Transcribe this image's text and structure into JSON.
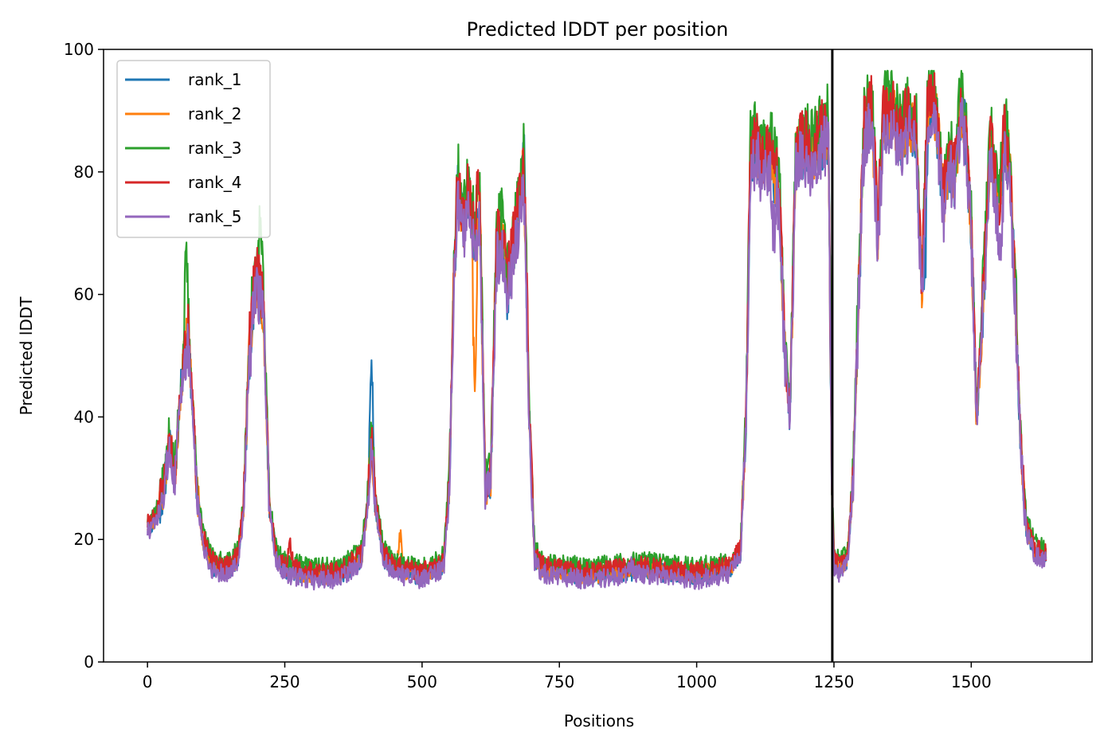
{
  "chart_data": {
    "type": "line",
    "title": "Predicted lDDT per position",
    "xlabel": "Positions",
    "ylabel": "Predicted lDDT",
    "xlim": [
      -80,
      1720
    ],
    "ylim": [
      0,
      100
    ],
    "xticks": [
      0,
      250,
      500,
      750,
      1000,
      1250,
      1500
    ],
    "yticks": [
      0,
      20,
      40,
      60,
      80,
      100
    ],
    "grid": false,
    "legend_position": "top-left",
    "vertical_line_x": 1247,
    "colors": [
      "#1f77b4",
      "#ff7f0e",
      "#2ca02c",
      "#d62728",
      "#9467bd"
    ],
    "x_range": [
      0,
      1636
    ],
    "anchors": [
      [
        0,
        22
      ],
      [
        15,
        23
      ],
      [
        30,
        28
      ],
      [
        40,
        36
      ],
      [
        50,
        30
      ],
      [
        58,
        42
      ],
      [
        65,
        48
      ],
      [
        72,
        54
      ],
      [
        80,
        45
      ],
      [
        90,
        28
      ],
      [
        100,
        20
      ],
      [
        115,
        16
      ],
      [
        130,
        15
      ],
      [
        150,
        15
      ],
      [
        165,
        17
      ],
      [
        175,
        25
      ],
      [
        185,
        50
      ],
      [
        195,
        60
      ],
      [
        205,
        62
      ],
      [
        212,
        55
      ],
      [
        222,
        25
      ],
      [
        235,
        17
      ],
      [
        250,
        15
      ],
      [
        300,
        14
      ],
      [
        350,
        14
      ],
      [
        390,
        17
      ],
      [
        400,
        25
      ],
      [
        408,
        36
      ],
      [
        416,
        25
      ],
      [
        430,
        17
      ],
      [
        450,
        15
      ],
      [
        500,
        14
      ],
      [
        540,
        16
      ],
      [
        550,
        30
      ],
      [
        558,
        62
      ],
      [
        565,
        77
      ],
      [
        575,
        70
      ],
      [
        585,
        76
      ],
      [
        595,
        68
      ],
      [
        605,
        74
      ],
      [
        615,
        28
      ],
      [
        625,
        30
      ],
      [
        635,
        66
      ],
      [
        645,
        70
      ],
      [
        655,
        60
      ],
      [
        665,
        67
      ],
      [
        675,
        72
      ],
      [
        685,
        80
      ],
      [
        695,
        40
      ],
      [
        705,
        17
      ],
      [
        720,
        15
      ],
      [
        800,
        14
      ],
      [
        900,
        15
      ],
      [
        1000,
        14
      ],
      [
        1060,
        15
      ],
      [
        1080,
        18
      ],
      [
        1090,
        40
      ],
      [
        1098,
        82
      ],
      [
        1110,
        84
      ],
      [
        1120,
        80
      ],
      [
        1135,
        82
      ],
      [
        1150,
        76
      ],
      [
        1160,
        52
      ],
      [
        1170,
        40
      ],
      [
        1180,
        82
      ],
      [
        1195,
        84
      ],
      [
        1210,
        82
      ],
      [
        1225,
        85
      ],
      [
        1240,
        86
      ],
      [
        1246,
        30
      ],
      [
        1250,
        16
      ],
      [
        1260,
        15
      ],
      [
        1275,
        17
      ],
      [
        1285,
        30
      ],
      [
        1295,
        60
      ],
      [
        1305,
        86
      ],
      [
        1318,
        90
      ],
      [
        1330,
        70
      ],
      [
        1340,
        88
      ],
      [
        1355,
        90
      ],
      [
        1370,
        85
      ],
      [
        1385,
        88
      ],
      [
        1400,
        86
      ],
      [
        1410,
        60
      ],
      [
        1420,
        88
      ],
      [
        1430,
        92
      ],
      [
        1440,
        85
      ],
      [
        1450,
        74
      ],
      [
        1460,
        82
      ],
      [
        1470,
        78
      ],
      [
        1480,
        90
      ],
      [
        1490,
        86
      ],
      [
        1500,
        70
      ],
      [
        1510,
        40
      ],
      [
        1520,
        56
      ],
      [
        1535,
        84
      ],
      [
        1550,
        72
      ],
      [
        1560,
        86
      ],
      [
        1570,
        80
      ],
      [
        1580,
        60
      ],
      [
        1590,
        35
      ],
      [
        1600,
        22
      ],
      [
        1615,
        18
      ],
      [
        1636,
        17
      ]
    ],
    "series": [
      {
        "name": "rank_1",
        "offset": 0,
        "seed": 11,
        "spikes": [
          [
            408,
            14
          ],
          [
            686,
            6
          ],
          [
            1417,
            -12
          ]
        ]
      },
      {
        "name": "rank_2",
        "offset": 0.5,
        "seed": 23,
        "spikes": [
          [
            460,
            6
          ],
          [
            596,
            -28
          ],
          [
            686,
            2
          ],
          [
            1512,
            -3
          ]
        ]
      },
      {
        "name": "rank_3",
        "offset": 2.5,
        "seed": 37,
        "spikes": [
          [
            70,
            9
          ],
          [
            205,
            7
          ],
          [
            1428,
            3
          ]
        ]
      },
      {
        "name": "rank_4",
        "offset": 1.2,
        "seed": 51,
        "spikes": [
          [
            260,
            4
          ],
          [
            600,
            4
          ],
          [
            690,
            2
          ],
          [
            1165,
            -2
          ]
        ]
      },
      {
        "name": "rank_5",
        "offset": -1,
        "seed": 73,
        "spikes": [
          [
            880,
            2
          ],
          [
            1140,
            -10
          ],
          [
            1555,
            -12
          ]
        ]
      }
    ]
  }
}
